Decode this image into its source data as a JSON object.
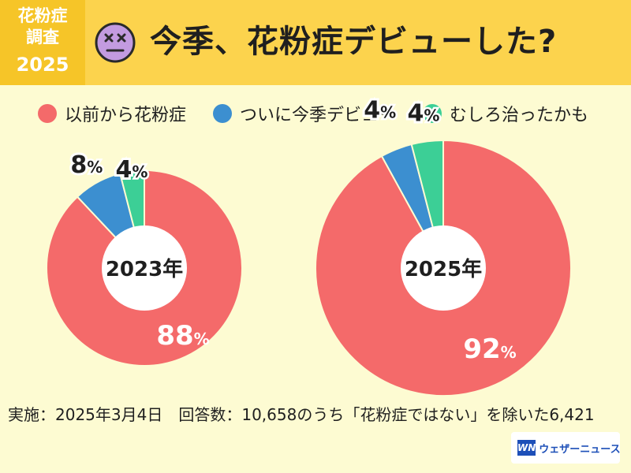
{
  "badge": {
    "line1": "花粉症",
    "line2": "調査",
    "line3": "2025"
  },
  "header": {
    "title": "今季、花粉症デビューした?"
  },
  "legend": [
    {
      "label": "以前から花粉症",
      "color": "#f46a6a"
    },
    {
      "label": "ついに今季デビュー",
      "color": "#3c8fd0"
    },
    {
      "label": "むしろ治ったかも",
      "color": "#3ccf96"
    }
  ],
  "chart_data": [
    {
      "type": "pie",
      "title": "2023年",
      "categories": [
        "以前から花粉症",
        "ついに今季デビュー",
        "むしろ治ったかも"
      ],
      "values": [
        88,
        8,
        4
      ],
      "unit": "%",
      "colors": [
        "#f46a6a",
        "#3c8fd0",
        "#3ccf96"
      ]
    },
    {
      "type": "pie",
      "title": "2025年",
      "categories": [
        "以前から花粉症",
        "ついに今季デビュー",
        "むしろ治ったかも"
      ],
      "values": [
        92,
        4,
        4
      ],
      "unit": "%",
      "colors": [
        "#f46a6a",
        "#3c8fd0",
        "#3ccf96"
      ]
    }
  ],
  "footer": {
    "note": "実施：2025年3月4日　回答数：10,658のうち「花粉症ではない」を除いた6,421"
  },
  "logo": {
    "mark": "WN",
    "text": "ウェザーニュース"
  }
}
